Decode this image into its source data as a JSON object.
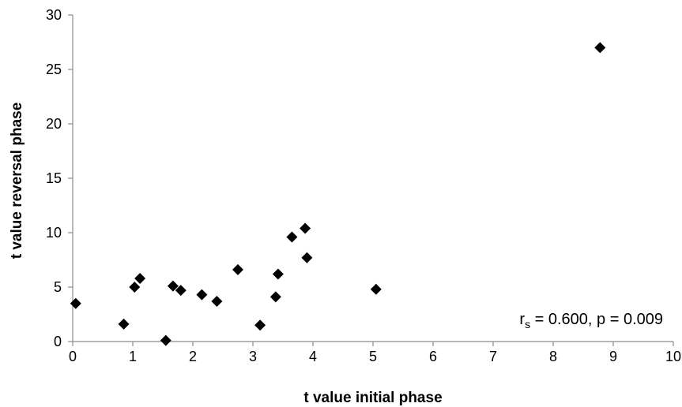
{
  "chart_data": {
    "type": "scatter",
    "title": "",
    "xlabel": "t value initial phase",
    "ylabel": "t value reversal phase",
    "xlim": [
      0,
      10
    ],
    "ylim": [
      0,
      30
    ],
    "xticks": [
      0,
      1,
      2,
      3,
      4,
      5,
      6,
      7,
      8,
      9,
      10
    ],
    "yticks": [
      0,
      5,
      10,
      15,
      20,
      25,
      30
    ],
    "grid": false,
    "marker": "diamond",
    "marker_color": "#000000",
    "annotation": {
      "r_symbol": "r",
      "r_subscript": "s",
      "r_value": " = 0.600, p = 0.009"
    },
    "series": [
      {
        "points": [
          {
            "x": 0.05,
            "y": 3.5
          },
          {
            "x": 0.85,
            "y": 1.6
          },
          {
            "x": 1.03,
            "y": 5.0
          },
          {
            "x": 1.12,
            "y": 5.8
          },
          {
            "x": 1.55,
            "y": 0.1
          },
          {
            "x": 1.67,
            "y": 5.1
          },
          {
            "x": 1.8,
            "y": 4.7
          },
          {
            "x": 2.15,
            "y": 4.3
          },
          {
            "x": 2.4,
            "y": 3.7
          },
          {
            "x": 2.75,
            "y": 6.6
          },
          {
            "x": 3.12,
            "y": 1.5
          },
          {
            "x": 3.38,
            "y": 4.1
          },
          {
            "x": 3.42,
            "y": 6.2
          },
          {
            "x": 3.65,
            "y": 9.6
          },
          {
            "x": 3.87,
            "y": 10.4
          },
          {
            "x": 3.9,
            "y": 7.7
          },
          {
            "x": 5.05,
            "y": 4.8
          },
          {
            "x": 8.78,
            "y": 27.0
          }
        ]
      }
    ]
  }
}
